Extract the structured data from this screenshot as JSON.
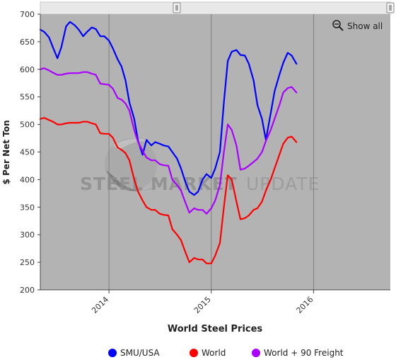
{
  "chart_data": {
    "type": "line",
    "title": "",
    "xlabel": "World Steel Prices",
    "ylabel": "$ Per Net Ton",
    "ylim": [
      200,
      700
    ],
    "yticks": [
      200,
      250,
      300,
      350,
      400,
      450,
      500,
      550,
      600,
      650,
      700
    ],
    "xlim": [
      "2013-05-01",
      "2016-10-01"
    ],
    "xticks": [
      {
        "date": "2014-01-01",
        "label": "2014"
      },
      {
        "date": "2015-01-01",
        "label": "2015"
      },
      {
        "date": "2016-01-01",
        "label": "2016"
      }
    ],
    "grid": "vertical-at-year-ticks",
    "legend": "bottom-center",
    "plot_background": "#b3b3b3",
    "series": [
      {
        "name": "SMU/USA",
        "color": "#0000ff",
        "points": [
          [
            "2013-05-01",
            672
          ],
          [
            "2013-05-15",
            668
          ],
          [
            "2013-06-01",
            658
          ],
          [
            "2013-06-15",
            640
          ],
          [
            "2013-07-01",
            620
          ],
          [
            "2013-07-15",
            640
          ],
          [
            "2013-08-01",
            678
          ],
          [
            "2013-08-15",
            686
          ],
          [
            "2013-09-01",
            680
          ],
          [
            "2013-09-15",
            672
          ],
          [
            "2013-10-01",
            660
          ],
          [
            "2013-10-15",
            668
          ],
          [
            "2013-11-01",
            676
          ],
          [
            "2013-11-15",
            673
          ],
          [
            "2013-12-01",
            660
          ],
          [
            "2013-12-15",
            660
          ],
          [
            "2014-01-01",
            652
          ],
          [
            "2014-01-15",
            638
          ],
          [
            "2014-02-01",
            618
          ],
          [
            "2014-02-15",
            605
          ],
          [
            "2014-03-01",
            580
          ],
          [
            "2014-03-15",
            540
          ],
          [
            "2014-04-01",
            510
          ],
          [
            "2014-04-15",
            470
          ],
          [
            "2014-05-01",
            445
          ],
          [
            "2014-05-15",
            472
          ],
          [
            "2014-06-01",
            462
          ],
          [
            "2014-06-15",
            468
          ],
          [
            "2014-07-01",
            465
          ],
          [
            "2014-07-15",
            462
          ],
          [
            "2014-08-01",
            460
          ],
          [
            "2014-08-15",
            450
          ],
          [
            "2014-09-01",
            438
          ],
          [
            "2014-09-15",
            420
          ],
          [
            "2014-10-01",
            395
          ],
          [
            "2014-10-15",
            378
          ],
          [
            "2014-11-01",
            372
          ],
          [
            "2014-11-15",
            378
          ],
          [
            "2014-12-01",
            400
          ],
          [
            "2014-12-15",
            410
          ],
          [
            "2015-01-01",
            403
          ],
          [
            "2015-01-15",
            420
          ],
          [
            "2015-02-01",
            450
          ],
          [
            "2015-02-15",
            540
          ],
          [
            "2015-03-01",
            615
          ],
          [
            "2015-03-15",
            632
          ],
          [
            "2015-04-01",
            635
          ],
          [
            "2015-04-15",
            626
          ],
          [
            "2015-05-01",
            625
          ],
          [
            "2015-05-15",
            610
          ],
          [
            "2015-06-01",
            580
          ],
          [
            "2015-06-15",
            535
          ],
          [
            "2015-07-01",
            510
          ],
          [
            "2015-07-15",
            472
          ],
          [
            "2015-08-01",
            520
          ],
          [
            "2015-08-15",
            560
          ],
          [
            "2015-09-01",
            590
          ],
          [
            "2015-09-15",
            612
          ],
          [
            "2015-10-01",
            630
          ],
          [
            "2015-10-15",
            625
          ],
          [
            "2015-11-01",
            610
          ]
        ]
      },
      {
        "name": "World",
        "color": "#ff0000",
        "points": [
          [
            "2013-05-01",
            510
          ],
          [
            "2013-05-15",
            512
          ],
          [
            "2013-06-01",
            508
          ],
          [
            "2013-06-15",
            505
          ],
          [
            "2013-07-01",
            500
          ],
          [
            "2013-07-15",
            500
          ],
          [
            "2013-08-01",
            502
          ],
          [
            "2013-08-15",
            503
          ],
          [
            "2013-09-01",
            503
          ],
          [
            "2013-09-15",
            503
          ],
          [
            "2013-10-01",
            505
          ],
          [
            "2013-10-15",
            505
          ],
          [
            "2013-11-01",
            502
          ],
          [
            "2013-11-15",
            500
          ],
          [
            "2013-12-01",
            484
          ],
          [
            "2013-12-15",
            483
          ],
          [
            "2014-01-01",
            483
          ],
          [
            "2014-01-15",
            476
          ],
          [
            "2014-02-01",
            458
          ],
          [
            "2014-02-15",
            454
          ],
          [
            "2014-03-01",
            448
          ],
          [
            "2014-03-15",
            435
          ],
          [
            "2014-04-01",
            400
          ],
          [
            "2014-04-15",
            378
          ],
          [
            "2014-05-01",
            362
          ],
          [
            "2014-05-15",
            350
          ],
          [
            "2014-06-01",
            345
          ],
          [
            "2014-06-15",
            345
          ],
          [
            "2014-07-01",
            338
          ],
          [
            "2014-07-15",
            336
          ],
          [
            "2014-08-01",
            335
          ],
          [
            "2014-08-15",
            310
          ],
          [
            "2014-09-01",
            300
          ],
          [
            "2014-09-15",
            290
          ],
          [
            "2014-10-01",
            268
          ],
          [
            "2014-10-15",
            250
          ],
          [
            "2014-11-01",
            258
          ],
          [
            "2014-11-15",
            255
          ],
          [
            "2014-12-01",
            255
          ],
          [
            "2014-12-15",
            248
          ],
          [
            "2015-01-01",
            248
          ],
          [
            "2015-01-15",
            262
          ],
          [
            "2015-02-01",
            285
          ],
          [
            "2015-02-15",
            350
          ],
          [
            "2015-03-01",
            408
          ],
          [
            "2015-03-15",
            400
          ],
          [
            "2015-04-01",
            360
          ],
          [
            "2015-04-15",
            328
          ],
          [
            "2015-05-01",
            330
          ],
          [
            "2015-05-15",
            335
          ],
          [
            "2015-06-01",
            345
          ],
          [
            "2015-06-15",
            348
          ],
          [
            "2015-07-01",
            360
          ],
          [
            "2015-07-15",
            380
          ],
          [
            "2015-08-01",
            400
          ],
          [
            "2015-08-15",
            420
          ],
          [
            "2015-09-01",
            445
          ],
          [
            "2015-09-15",
            465
          ],
          [
            "2015-10-01",
            476
          ],
          [
            "2015-10-15",
            478
          ],
          [
            "2015-11-01",
            468
          ]
        ]
      },
      {
        "name": "World + 90 Freight",
        "color": "#aa00ff",
        "points": [
          [
            "2013-05-01",
            600
          ],
          [
            "2013-05-15",
            602
          ],
          [
            "2013-06-01",
            598
          ],
          [
            "2013-06-15",
            594
          ],
          [
            "2013-07-01",
            590
          ],
          [
            "2013-07-15",
            590
          ],
          [
            "2013-08-01",
            592
          ],
          [
            "2013-08-15",
            593
          ],
          [
            "2013-09-01",
            593
          ],
          [
            "2013-09-15",
            593
          ],
          [
            "2013-10-01",
            595
          ],
          [
            "2013-10-15",
            595
          ],
          [
            "2013-11-01",
            592
          ],
          [
            "2013-11-15",
            590
          ],
          [
            "2013-12-01",
            574
          ],
          [
            "2013-12-15",
            573
          ],
          [
            "2014-01-01",
            572
          ],
          [
            "2014-01-15",
            565
          ],
          [
            "2014-02-01",
            548
          ],
          [
            "2014-02-15",
            545
          ],
          [
            "2014-03-01",
            538
          ],
          [
            "2014-03-15",
            525
          ],
          [
            "2014-04-01",
            490
          ],
          [
            "2014-04-15",
            468
          ],
          [
            "2014-05-01",
            452
          ],
          [
            "2014-05-15",
            440
          ],
          [
            "2014-06-01",
            435
          ],
          [
            "2014-06-15",
            435
          ],
          [
            "2014-07-01",
            428
          ],
          [
            "2014-07-15",
            426
          ],
          [
            "2014-08-01",
            425
          ],
          [
            "2014-08-15",
            400
          ],
          [
            "2014-09-01",
            390
          ],
          [
            "2014-09-15",
            380
          ],
          [
            "2014-10-01",
            358
          ],
          [
            "2014-10-15",
            340
          ],
          [
            "2014-11-01",
            348
          ],
          [
            "2014-11-15",
            345
          ],
          [
            "2014-12-01",
            345
          ],
          [
            "2014-12-15",
            338
          ],
          [
            "2015-01-01",
            348
          ],
          [
            "2015-01-15",
            362
          ],
          [
            "2015-02-01",
            390
          ],
          [
            "2015-02-15",
            450
          ],
          [
            "2015-03-01",
            500
          ],
          [
            "2015-03-15",
            490
          ],
          [
            "2015-04-01",
            462
          ],
          [
            "2015-04-15",
            418
          ],
          [
            "2015-05-01",
            420
          ],
          [
            "2015-05-15",
            425
          ],
          [
            "2015-06-01",
            432
          ],
          [
            "2015-06-15",
            438
          ],
          [
            "2015-07-01",
            450
          ],
          [
            "2015-07-15",
            470
          ],
          [
            "2015-08-01",
            490
          ],
          [
            "2015-08-15",
            510
          ],
          [
            "2015-09-01",
            535
          ],
          [
            "2015-09-15",
            558
          ],
          [
            "2015-10-01",
            566
          ],
          [
            "2015-10-15",
            568
          ],
          [
            "2015-11-01",
            558
          ]
        ]
      }
    ]
  },
  "controls": {
    "show_all_label": "Show all",
    "show_all_icon": "zoom-out-magnifier-icon",
    "scrollbar_handle_icon": "drag-grip-icon"
  },
  "watermark": {
    "text_bold": "STEEL MARKET",
    "text_light": "UPDATE",
    "logo_icon": "swoosh-globe-icon"
  }
}
